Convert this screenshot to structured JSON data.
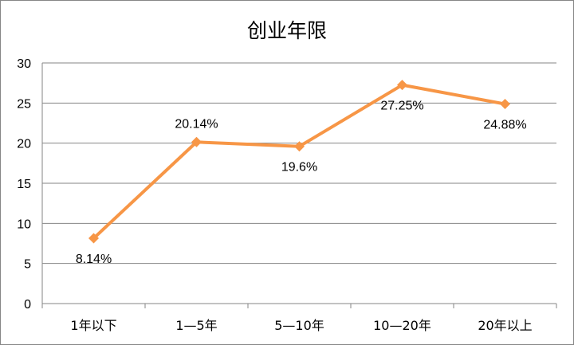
{
  "chart_data": {
    "type": "line",
    "title": "创业年限",
    "categories": [
      "1年以下",
      "1—5年",
      "5—10年",
      "10—20年",
      "20年以上"
    ],
    "series": [
      {
        "values": [
          8.14,
          20.14,
          19.6,
          27.25,
          24.88
        ],
        "data_labels": [
          "8.14%",
          "20.14%",
          "19.6%",
          "27.25%",
          "24.88%"
        ],
        "color": "#F79646",
        "marker": "diamond"
      }
    ],
    "ylim": [
      0,
      30
    ],
    "yticks": [
      0,
      5,
      10,
      15,
      20,
      25,
      30
    ],
    "grid": true,
    "legend": "none"
  }
}
